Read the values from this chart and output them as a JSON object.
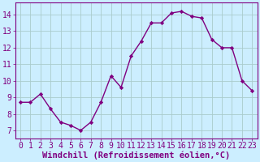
{
  "x": [
    0,
    1,
    2,
    3,
    4,
    5,
    6,
    7,
    8,
    9,
    10,
    11,
    12,
    13,
    14,
    15,
    16,
    17,
    18,
    19,
    20,
    21,
    22,
    23
  ],
  "y": [
    8.7,
    8.7,
    9.2,
    8.3,
    7.5,
    7.3,
    7.0,
    7.5,
    8.7,
    10.3,
    9.6,
    11.5,
    12.4,
    13.5,
    13.5,
    14.1,
    14.2,
    13.9,
    13.8,
    12.5,
    12.0,
    12.0,
    10.0,
    9.4
  ],
  "line_color": "#800080",
  "marker": "D",
  "marker_size": 2.2,
  "bg_color": "#cceeff",
  "grid_color": "#aacccc",
  "xlabel": "Windchill (Refroidissement éolien,°C)",
  "ylabel": "",
  "ylim": [
    6.5,
    14.75
  ],
  "xlim": [
    -0.5,
    23.5
  ],
  "yticks": [
    7,
    8,
    9,
    10,
    11,
    12,
    13,
    14
  ],
  "xticks": [
    0,
    1,
    2,
    3,
    4,
    5,
    6,
    7,
    8,
    9,
    10,
    11,
    12,
    13,
    14,
    15,
    16,
    17,
    18,
    19,
    20,
    21,
    22,
    23
  ],
  "tick_label_color": "#800080",
  "axis_color": "#800080",
  "xlabel_fontsize": 7.5,
  "tick_fontsize": 7.0,
  "linewidth": 1.0
}
